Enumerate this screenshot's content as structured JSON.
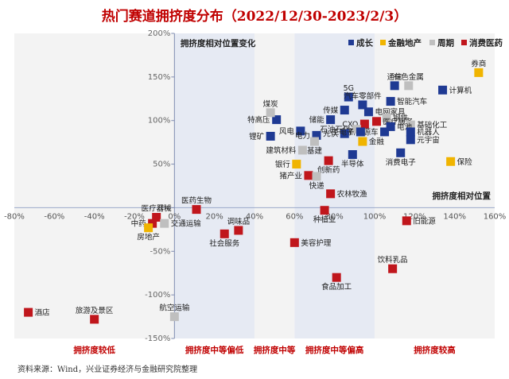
{
  "title": "热门赛道拥挤度分布（2022/12/30-2023/2/3）",
  "source": "资料来源：Wind，兴业证券经济与金融研究院整理",
  "chart_data": {
    "type": "scatter",
    "title": "热门赛道拥挤度分布（2022/12/30-2023/2/3）",
    "xlim": [
      -80,
      160
    ],
    "ylim": [
      -150,
      200
    ],
    "x_ticks": [
      -80,
      -60,
      -40,
      -20,
      0,
      20,
      40,
      60,
      80,
      100,
      120,
      140,
      160
    ],
    "y_ticks": [
      -150,
      -100,
      -50,
      0,
      50,
      100,
      150,
      200
    ],
    "x_tick_labels": [
      "-80%",
      "-60%",
      "-40%",
      "-20%",
      "0%",
      "20%",
      "40%",
      "60%",
      "80%",
      "100%",
      "120%",
      "140%",
      "160%"
    ],
    "y_tick_labels": [
      "-150%",
      "-100%",
      "-50%",
      "0%",
      "50%",
      "100%",
      "150%",
      "200%"
    ],
    "ylabel": "拥挤度相对位置变化",
    "xlabel": "拥挤度相对位置",
    "legend": [
      "成长",
      "金融地产",
      "周期",
      "消费医药"
    ],
    "legend_position": "top-right",
    "colors": {
      "成长": "#1f3a93",
      "金融地产": "#f0b400",
      "周期": "#bfbfbf",
      "消费医药": "#c0161c"
    },
    "bands": [
      {
        "label": "拥挤度较低",
        "x": [
          -80,
          0
        ]
      },
      {
        "label": "拥挤度中等偏低",
        "x": [
          0,
          40
        ]
      },
      {
        "label": "拥挤度中等",
        "x": [
          40,
          60
        ]
      },
      {
        "label": "拥挤度中等偏高",
        "x": [
          60,
          100
        ]
      },
      {
        "label": "拥挤度较高",
        "x": [
          100,
          160
        ]
      }
    ],
    "points": [
      {
        "name": "券商",
        "x": 152,
        "y": 155,
        "group": "金融地产",
        "pos": "t"
      },
      {
        "name": "计算机",
        "x": 134,
        "y": 135,
        "group": "成长",
        "pos": "r"
      },
      {
        "name": "通信",
        "x": 110,
        "y": 140,
        "group": "成长",
        "pos": "t"
      },
      {
        "name": "有色金属",
        "x": 117,
        "y": 140,
        "group": "周期",
        "pos": "t"
      },
      {
        "name": "智能汽车",
        "x": 108,
        "y": 122,
        "group": "成长",
        "pos": "r"
      },
      {
        "name": "5G",
        "x": 87,
        "y": 127,
        "group": "成长",
        "pos": "t"
      },
      {
        "name": "汽车零部件",
        "x": 94,
        "y": 118,
        "group": "成长",
        "pos": "t"
      },
      {
        "name": "电网家具",
        "x": 97,
        "y": 110,
        "group": "成长",
        "pos": "r"
      },
      {
        "name": "传媒",
        "x": 85,
        "y": 112,
        "group": "成长",
        "pos": "l"
      },
      {
        "name": "储能",
        "x": 78,
        "y": 101,
        "group": "成长",
        "pos": "l"
      },
      {
        "name": "钢铁",
        "x": 106,
        "y": 103,
        "group": "周期",
        "pos": "r"
      },
      {
        "name": "CXO",
        "x": 95,
        "y": 96,
        "group": "消费医药",
        "pos": "l"
      },
      {
        "name": "医疗服务",
        "x": 101,
        "y": 99,
        "group": "消费医药",
        "pos": "r"
      },
      {
        "name": "基础化工",
        "x": 118,
        "y": 95,
        "group": "周期",
        "pos": "r"
      },
      {
        "name": "电池",
        "x": 108,
        "y": 93,
        "group": "成长",
        "pos": "r"
      },
      {
        "name": "新能源车",
        "x": 105,
        "y": 87,
        "group": "成长",
        "pos": "l"
      },
      {
        "name": "石油石化",
        "x": 91,
        "y": 90,
        "group": "周期",
        "pos": "l"
      },
      {
        "name": "机器人",
        "x": 118,
        "y": 87,
        "group": "成长",
        "pos": "r"
      },
      {
        "name": "风电",
        "x": 63,
        "y": 88,
        "group": "成长",
        "pos": "l"
      },
      {
        "name": "电力",
        "x": 71,
        "y": 83,
        "group": "成长",
        "pos": "l"
      },
      {
        "name": "光伏",
        "x": 85,
        "y": 85,
        "group": "成长",
        "pos": "l"
      },
      {
        "name": "工电子",
        "x": 93,
        "y": 87,
        "group": "成长",
        "pos": "l"
      },
      {
        "name": "金融",
        "x": 94,
        "y": 76,
        "group": "金融地产",
        "pos": "r"
      },
      {
        "name": "元宇宙",
        "x": 118,
        "y": 78,
        "group": "成长",
        "pos": "r"
      },
      {
        "name": "特高压",
        "x": 51,
        "y": 101,
        "group": "成长",
        "pos": "l"
      },
      {
        "name": "煤炭",
        "x": 48,
        "y": 109,
        "group": "周期",
        "pos": "t"
      },
      {
        "name": "锂矿",
        "x": 48,
        "y": 82,
        "group": "成长",
        "pos": "l"
      },
      {
        "name": "建筑材料",
        "x": 64,
        "y": 66,
        "group": "周期",
        "pos": "l"
      },
      {
        "name": "基建",
        "x": 70,
        "y": 76,
        "group": "周期",
        "pos": "b"
      },
      {
        "name": "半导体",
        "x": 89,
        "y": 61,
        "group": "成长",
        "pos": "b"
      },
      {
        "name": "消费电子",
        "x": 113,
        "y": 63,
        "group": "成长",
        "pos": "b"
      },
      {
        "name": "保险",
        "x": 138,
        "y": 53,
        "group": "金融地产",
        "pos": "r"
      },
      {
        "name": "银行",
        "x": 61,
        "y": 50,
        "group": "金融地产",
        "pos": "l"
      },
      {
        "name": "猪产业",
        "x": 67,
        "y": 37,
        "group": "消费医药",
        "pos": "l"
      },
      {
        "name": "创新药",
        "x": 77,
        "y": 54,
        "group": "消费医药",
        "pos": "b"
      },
      {
        "name": "快递",
        "x": 71,
        "y": 36,
        "group": "周期",
        "pos": "b"
      },
      {
        "name": "农林牧渔",
        "x": 78,
        "y": 16,
        "group": "消费医药",
        "pos": "r"
      },
      {
        "name": "医疗器械",
        "x": -9,
        "y": -11,
        "group": "消费医药",
        "pos": "t"
      },
      {
        "name": "医药生物",
        "x": 11,
        "y": -2,
        "group": "消费医药",
        "pos": "t"
      },
      {
        "name": "中药",
        "x": -11,
        "y": -18,
        "group": "消费医药",
        "pos": "l"
      },
      {
        "name": "交通运输",
        "x": -5,
        "y": -18,
        "group": "周期",
        "pos": "r"
      },
      {
        "name": "房地产",
        "x": -13,
        "y": -23,
        "group": "金融地产",
        "pos": "b"
      },
      {
        "name": "调味品",
        "x": 32,
        "y": -26,
        "group": "消费医药",
        "pos": "t"
      },
      {
        "name": "社会服务",
        "x": 25,
        "y": -30,
        "group": "消费医药",
        "pos": "b"
      },
      {
        "name": "种植业",
        "x": 75,
        "y": -3,
        "group": "消费医药",
        "pos": "b"
      },
      {
        "name": "美容护理",
        "x": 60,
        "y": -40,
        "group": "消费医药",
        "pos": "r"
      },
      {
        "name": "旧能源",
        "x": 116,
        "y": -15,
        "group": "消费医药",
        "pos": "r"
      },
      {
        "name": "饮料乳品",
        "x": 109,
        "y": -70,
        "group": "消费医药",
        "pos": "t"
      },
      {
        "name": "食品加工",
        "x": 81,
        "y": -80,
        "group": "消费医药",
        "pos": "b"
      },
      {
        "name": "航空运输",
        "x": 0,
        "y": -125,
        "group": "周期",
        "pos": "t"
      },
      {
        "name": "旅游及景区",
        "x": -40,
        "y": -128,
        "group": "消费医药",
        "pos": "t"
      },
      {
        "name": "酒店",
        "x": -73,
        "y": -120,
        "group": "消费医药",
        "pos": "r"
      }
    ]
  }
}
